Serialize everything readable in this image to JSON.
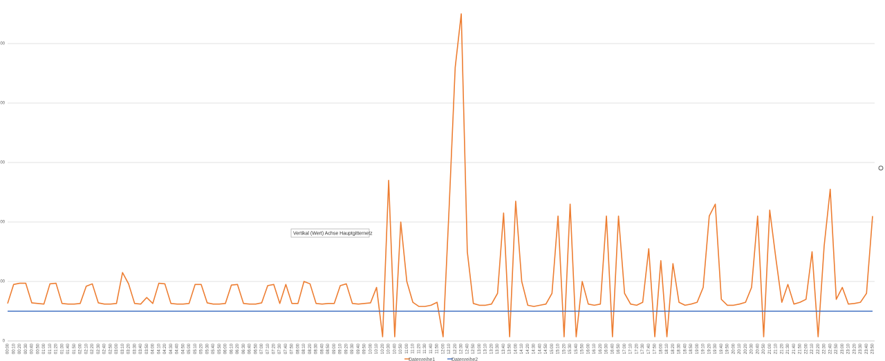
{
  "chart_data": {
    "type": "line",
    "tooltip": "Vertikal (Wert) Achse Hauptgitternetz",
    "categories": [
      "00:00",
      "00:10",
      "00:20",
      "00:30",
      "00:40",
      "00:50",
      "01:00",
      "01:10",
      "01:20",
      "01:30",
      "01:40",
      "01:50",
      "02:00",
      "02:10",
      "02:20",
      "02:30",
      "02:40",
      "02:50",
      "03:00",
      "03:10",
      "03:20",
      "03:30",
      "03:40",
      "03:50",
      "04:00",
      "04:10",
      "04:20",
      "04:30",
      "04:40",
      "04:50",
      "05:00",
      "05:10",
      "05:20",
      "05:30",
      "05:40",
      "05:50",
      "06:00",
      "06:10",
      "06:20",
      "06:30",
      "06:40",
      "06:50",
      "07:00",
      "07:10",
      "07:20",
      "07:30",
      "07:40",
      "07:50",
      "08:00",
      "08:10",
      "08:20",
      "08:30",
      "08:40",
      "08:50",
      "09:00",
      "09:10",
      "09:20",
      "09:30",
      "09:40",
      "09:50",
      "10:00",
      "10:10",
      "10:20",
      "10:30",
      "10:40",
      "10:50",
      "11:00",
      "11:10",
      "11:20",
      "11:30",
      "11:40",
      "11:50",
      "12:00",
      "12:10",
      "12:20",
      "12:30",
      "12:40",
      "12:50",
      "13:00",
      "13:10",
      "13:20",
      "13:30",
      "13:40",
      "13:50",
      "14:00",
      "14:10",
      "14:20",
      "14:30",
      "14:40",
      "14:50",
      "15:00",
      "15:10",
      "15:20",
      "15:30",
      "15:40",
      "15:50",
      "16:00",
      "16:10",
      "16:20",
      "16:30",
      "16:40",
      "16:50",
      "17:00",
      "17:10",
      "17:20",
      "17:30",
      "17:40",
      "17:50",
      "18:00",
      "18:10",
      "18:20",
      "18:30",
      "18:40",
      "18:50",
      "19:00",
      "19:10",
      "19:20",
      "19:30",
      "19:40",
      "19:50",
      "20:00",
      "20:10",
      "20:20",
      "20:30",
      "20:40",
      "20:50",
      "21:00",
      "21:10",
      "21:20",
      "21:30",
      "21:40",
      "21:50",
      "22:00",
      "22:10",
      "22:20",
      "22:30",
      "22:40",
      "22:50",
      "23:00",
      "23:10",
      "23:20",
      "23:30",
      "23:40",
      "23:50"
    ],
    "series": [
      {
        "name": "Datenreihe1",
        "color": "#ed7d31",
        "values": [
          63,
          95,
          97,
          97,
          64,
          63,
          62,
          96,
          97,
          63,
          62,
          62,
          63,
          92,
          96,
          64,
          62,
          62,
          63,
          115,
          96,
          63,
          62,
          73,
          63,
          97,
          96,
          63,
          62,
          62,
          63,
          95,
          95,
          64,
          62,
          62,
          63,
          94,
          95,
          63,
          62,
          62,
          64,
          93,
          95,
          63,
          95,
          63,
          63,
          100,
          96,
          63,
          62,
          63,
          63,
          93,
          96,
          63,
          62,
          63,
          64,
          90,
          7,
          270,
          7,
          200,
          100,
          65,
          58,
          58,
          60,
          65,
          7,
          225,
          460,
          550,
          150,
          63,
          60,
          60,
          62,
          80,
          215,
          7,
          235,
          100,
          60,
          58,
          60,
          62,
          80,
          210,
          7,
          230,
          7,
          100,
          62,
          60,
          62,
          210,
          7,
          210,
          80,
          62,
          60,
          65,
          155,
          7,
          135,
          7,
          130,
          65,
          60,
          62,
          65,
          90,
          210,
          230,
          70,
          60,
          60,
          62,
          65,
          90,
          210,
          7,
          220,
          140,
          65,
          95,
          62,
          65,
          70,
          150,
          7,
          160,
          255,
          70,
          90,
          62,
          63,
          65,
          80,
          210
        ]
      },
      {
        "name": "Datenreihe2",
        "color": "#4472c4",
        "values": [
          50,
          50,
          50,
          50,
          50,
          50,
          50,
          50,
          50,
          50,
          50,
          50,
          50,
          50,
          50,
          50,
          50,
          50,
          50,
          50,
          50,
          50,
          50,
          50,
          50,
          50,
          50,
          50,
          50,
          50,
          50,
          50,
          50,
          50,
          50,
          50,
          50,
          50,
          50,
          50,
          50,
          50,
          50,
          50,
          50,
          50,
          50,
          50,
          50,
          50,
          50,
          50,
          50,
          50,
          50,
          50,
          50,
          50,
          50,
          50,
          50,
          50,
          50,
          50,
          50,
          50,
          50,
          50,
          50,
          50,
          50,
          50,
          50,
          50,
          50,
          50,
          50,
          50,
          50,
          50,
          50,
          50,
          50,
          50,
          50,
          50,
          50,
          50,
          50,
          50,
          50,
          50,
          50,
          50,
          50,
          50,
          50,
          50,
          50,
          50,
          50,
          50,
          50,
          50,
          50,
          50,
          50,
          50,
          50,
          50,
          50,
          50,
          50,
          50,
          50,
          50,
          50,
          50,
          50,
          50,
          50,
          50,
          50,
          50,
          50,
          50,
          50,
          50,
          50,
          50,
          50,
          50,
          50,
          50,
          50,
          50,
          50,
          50,
          50,
          50,
          50,
          50,
          50,
          50
        ]
      }
    ],
    "ylim": [
      0,
      560
    ],
    "yticks": [
      0,
      {
        "value": 100,
        "label": "00"
      },
      {
        "value": 200,
        "label": "00"
      },
      {
        "value": 300,
        "label": "00"
      },
      {
        "value": 400,
        "label": "00"
      },
      {
        "value": 500,
        "label": "00"
      }
    ],
    "grid": true
  }
}
